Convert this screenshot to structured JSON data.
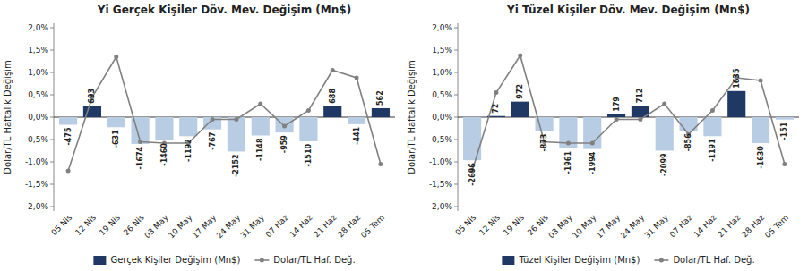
{
  "chart_data": [
    {
      "type": "bar",
      "title": "Yi Gerçek Kişiler Döv. Mev. Değişim (Mn$)",
      "y_label": "Dolar/TL Haftalık Değişim",
      "categories": [
        "05 Nis",
        "12 Nis",
        "19 Nis",
        "26 Nis",
        "03 May",
        "10 May",
        "17 May",
        "24 May",
        "31 May",
        "07 Haz",
        "14 Haz",
        "21 Haz",
        "28 Haz",
        "05 Tem"
      ],
      "ylim": [
        -2.1,
        2.1
      ],
      "yticks": [
        {
          "value": -2.0,
          "label": "-2,0%"
        },
        {
          "value": -1.5,
          "label": "-1,5%"
        },
        {
          "value": -1.0,
          "label": "-1,0%"
        },
        {
          "value": -0.5,
          "label": "-0,5%"
        },
        {
          "value": 0.0,
          "label": "0,0%"
        },
        {
          "value": 0.5,
          "label": "0,5%"
        },
        {
          "value": 1.0,
          "label": "1,0%"
        },
        {
          "value": 1.5,
          "label": "1,5%"
        },
        {
          "value": 2.0,
          "label": "2,0%"
        }
      ],
      "y2lim": [
        -5880,
        5880
      ],
      "grid": false,
      "legend": "bottom",
      "series": [
        {
          "name": "Gerçek Kişiler Değişim (Mn$)",
          "type": "bar",
          "axis": "y2",
          "data_labels": true,
          "color": "#1f3864",
          "colors": [
            "#b8cce4",
            "#1f3864",
            "#b8cce4",
            "#b8cce4",
            "#b8cce4",
            "#b8cce4",
            "#b8cce4",
            "#b8cce4",
            "#b8cce4",
            "#b8cce4",
            "#b8cce4",
            "#1f3864",
            "#b8cce4",
            "#1f3864"
          ],
          "values": [
            -475,
            693,
            -631,
            -1674,
            -1460,
            -1192,
            -767,
            -2152,
            -1148,
            -959,
            -1510,
            688,
            -441,
            562
          ]
        },
        {
          "name": "Dolar/TL Haf. Değ.",
          "type": "line",
          "color": "#808080",
          "marker": "circle",
          "values": [
            -1.2,
            0.45,
            1.35,
            -0.55,
            -0.58,
            -0.58,
            -0.05,
            -0.05,
            0.3,
            -0.2,
            0.15,
            1.05,
            0.88,
            -1.05
          ]
        }
      ]
    },
    {
      "type": "bar",
      "title": "Yi Tüzel Kişiler Döv. Mev. Değişim (Mn$)",
      "y_label": "Dolar/TL Haftalık Değişim",
      "categories": [
        "05 Nis",
        "12 Nis",
        "19 Nis",
        "26 Nis",
        "03 May",
        "10 May",
        "17 May",
        "24 May",
        "31 May",
        "07 Haz",
        "14 Haz",
        "21 Haz",
        "28 Haz",
        "05 Tem"
      ],
      "ylim": [
        -2.1,
        2.1
      ],
      "yticks": [
        {
          "value": -2.0,
          "label": "-2,0%"
        },
        {
          "value": -1.5,
          "label": "-1,5%"
        },
        {
          "value": -1.0,
          "label": "-1,0%"
        },
        {
          "value": -0.5,
          "label": "-0,5%"
        },
        {
          "value": 0.0,
          "label": "0,0%"
        },
        {
          "value": 0.5,
          "label": "0,5%"
        },
        {
          "value": 1.0,
          "label": "1,0%"
        },
        {
          "value": 1.5,
          "label": "1,5%"
        },
        {
          "value": 2.0,
          "label": "2,0%"
        }
      ],
      "y2lim": [
        -5880,
        5880
      ],
      "grid": false,
      "legend": "bottom",
      "series": [
        {
          "name": "Tüzel Kişiler Değişim (Mn$)",
          "type": "bar",
          "axis": "y2",
          "data_labels": true,
          "color": "#1f3864",
          "colors": [
            "#b8cce4",
            "#1f3864",
            "#1f3864",
            "#b8cce4",
            "#b8cce4",
            "#b8cce4",
            "#1f3864",
            "#1f3864",
            "#b8cce4",
            "#b8cce4",
            "#b8cce4",
            "#1f3864",
            "#b8cce4",
            "#b8cce4"
          ],
          "values": [
            -2696,
            72,
            972,
            -873,
            -1961,
            -1994,
            179,
            712,
            -2099,
            -856,
            -1191,
            1635,
            -1630,
            -151
          ]
        },
        {
          "name": "Dolar/TL Haf. Değ.",
          "type": "line",
          "color": "#808080",
          "marker": "circle",
          "values": [
            -1.2,
            0.55,
            1.38,
            -0.55,
            -0.58,
            -0.58,
            -0.05,
            -0.05,
            0.3,
            -0.38,
            0.15,
            0.88,
            0.82,
            -1.05
          ]
        }
      ]
    }
  ]
}
